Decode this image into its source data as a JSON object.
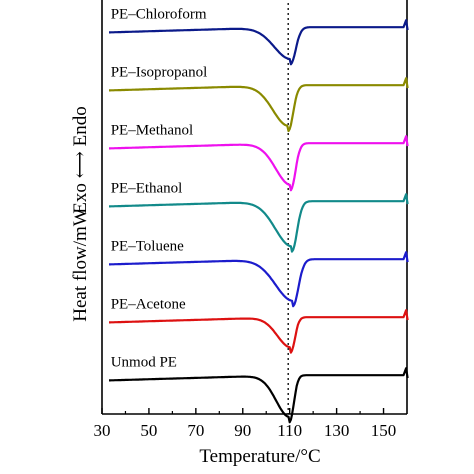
{
  "chart_data": {
    "type": "line",
    "title": "",
    "xlabel": "Temperature/°C",
    "ylabel_left": "Heat flow/mW",
    "ylabel_arrow": "Exo ⟷ Endo",
    "xlim": [
      30,
      160
    ],
    "xticks": [
      30,
      50,
      70,
      90,
      110,
      130,
      150
    ],
    "yticks_shown": false,
    "grid": false,
    "legend": "none",
    "reference_line": {
      "x": 110,
      "style": "dotted"
    },
    "series": [
      {
        "name": "PE–Chloroform",
        "color": "#0b1a8a",
        "offset": 6.2,
        "peak_x": 110.5,
        "depth": 0.55,
        "width": 3.2,
        "label_x": 32
      },
      {
        "name": "PE–Isopropanol",
        "color": "#8a8a00",
        "offset": 5.2,
        "peak_x": 109.5,
        "depth": 0.7,
        "width": 3.0,
        "label_x": 32
      },
      {
        "name": "PE–Methanol",
        "color": "#ee11ee",
        "offset": 4.2,
        "peak_x": 110.5,
        "depth": 0.72,
        "width": 2.9,
        "label_x": 32
      },
      {
        "name": "PE–Ethanol",
        "color": "#128a8a",
        "offset": 3.2,
        "peak_x": 111.0,
        "depth": 0.78,
        "width": 3.2,
        "label_x": 32
      },
      {
        "name": "PE–Toluene",
        "color": "#1c1ccc",
        "offset": 2.2,
        "peak_x": 111.5,
        "depth": 0.72,
        "width": 3.4,
        "label_x": 32
      },
      {
        "name": "PE–Acetone",
        "color": "#dd1111",
        "offset": 1.2,
        "peak_x": 110.5,
        "depth": 0.52,
        "width": 2.6,
        "label_x": 32
      },
      {
        "name": "Unmod PE",
        "color": "#000000",
        "offset": 0.2,
        "peak_x": 110.0,
        "depth": 0.72,
        "width": 2.6,
        "label_x": 32
      }
    ]
  }
}
